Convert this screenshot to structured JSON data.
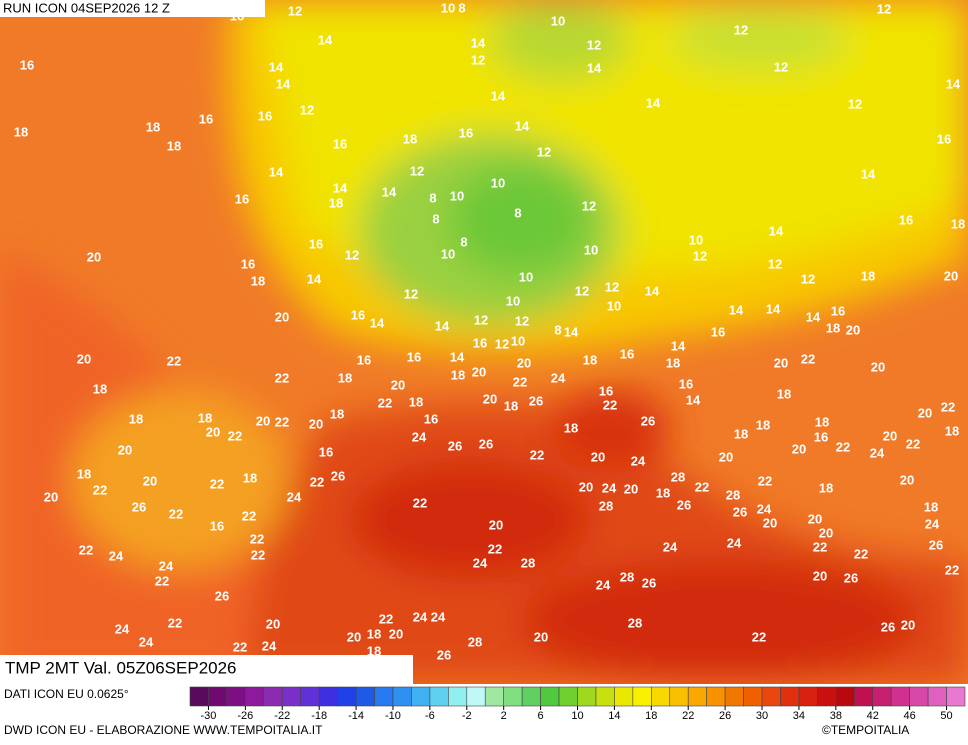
{
  "header": {
    "run": "RUN ICON 04SEP2026 12 Z"
  },
  "map": {
    "labels": [
      16,
      12,
      10,
      8,
      10,
      12,
      14,
      14,
      12,
      12,
      16,
      14,
      12,
      14,
      12,
      14,
      14,
      14,
      14,
      12,
      18,
      18,
      16,
      16,
      12,
      18,
      16,
      14,
      16,
      16,
      18,
      12,
      14,
      12,
      14,
      16,
      14,
      18,
      14,
      10,
      10,
      8,
      12,
      8,
      8,
      16,
      18,
      14,
      16,
      8,
      10,
      20,
      12,
      10,
      10,
      12,
      16,
      18,
      14,
      10,
      12,
      18,
      20,
      12,
      12,
      12,
      14,
      12,
      10,
      10,
      20,
      16,
      14,
      14,
      12,
      12,
      14,
      14,
      14,
      16,
      18,
      20,
      16,
      8,
      14,
      12,
      16,
      10,
      20,
      22,
      16,
      16,
      14,
      18,
      16,
      14,
      18,
      20,
      22,
      20,
      22,
      18,
      18,
      20,
      20,
      22,
      24,
      18,
      20,
      16,
      16,
      18,
      22,
      18,
      20,
      18,
      26,
      22,
      14,
      18,
      18,
      18,
      20,
      22,
      20,
      16,
      20,
      22,
      18,
      26,
      20,
      22,
      18,
      18,
      18,
      24,
      20,
      16,
      26,
      26,
      20,
      16,
      22,
      20,
      22,
      18,
      22,
      20,
      24,
      20,
      24,
      26,
      18,
      20,
      22,
      18,
      22,
      28,
      20,
      20,
      22,
      24,
      20,
      24,
      20,
      18,
      22,
      28,
      22,
      18,
      26,
      22,
      22,
      28,
      26,
      26,
      24,
      18,
      22,
      16,
      20,
      20,
      20,
      24,
      22,
      20,
      22,
      24,
      22,
      22,
      24,
      24,
      26,
      24,
      22,
      24,
      28,
      22,
      22,
      20,
      26,
      22,
      24,
      28,
      26,
      26,
      22,
      24,
      24,
      24,
      22,
      24,
      20,
      20,
      18,
      20,
      28,
      20,
      28,
      22,
      26,
      20,
      22,
      24,
      24,
      18,
      26
    ]
  },
  "legend": {
    "lim": [
      -32,
      52
    ],
    "ticks": [
      -30,
      -26,
      -22,
      -18,
      -14,
      -10,
      -6,
      -2,
      2,
      6,
      10,
      14,
      18,
      22,
      26,
      30,
      34,
      38,
      42,
      46,
      50
    ],
    "colors": [
      "#5a0a5a",
      "#700a70",
      "#7d0f85",
      "#8c1a9a",
      "#8a2bb0",
      "#7a30c8",
      "#6030d8",
      "#3c30e0",
      "#2040e8",
      "#1e5ae6",
      "#2878f0",
      "#3090f0",
      "#40b0f0",
      "#60d0f0",
      "#90f0f0",
      "#c0f8f8",
      "#a0e8a0",
      "#80e080",
      "#60d060",
      "#50c840",
      "#70d030",
      "#a0d820",
      "#c8e010",
      "#e8e800",
      "#f8f000",
      "#f8d800",
      "#f8c000",
      "#f8a800",
      "#f89000",
      "#f07800",
      "#f06000",
      "#e84810",
      "#e03010",
      "#d82010",
      "#c81010",
      "#b80810",
      "#c01050",
      "#c82070",
      "#d03090",
      "#d848a8",
      "#e060c0",
      "#e878d0"
    ]
  },
  "footer": {
    "title": "TMP 2MT Val. 05Z06SEP2026",
    "data_source": "DATI ICON EU 0.0625°",
    "credit": "DWD ICON EU - ELABORAZIONE WWW.TEMPOITALIA.IT",
    "brand": "©TEMPOITALIA"
  }
}
